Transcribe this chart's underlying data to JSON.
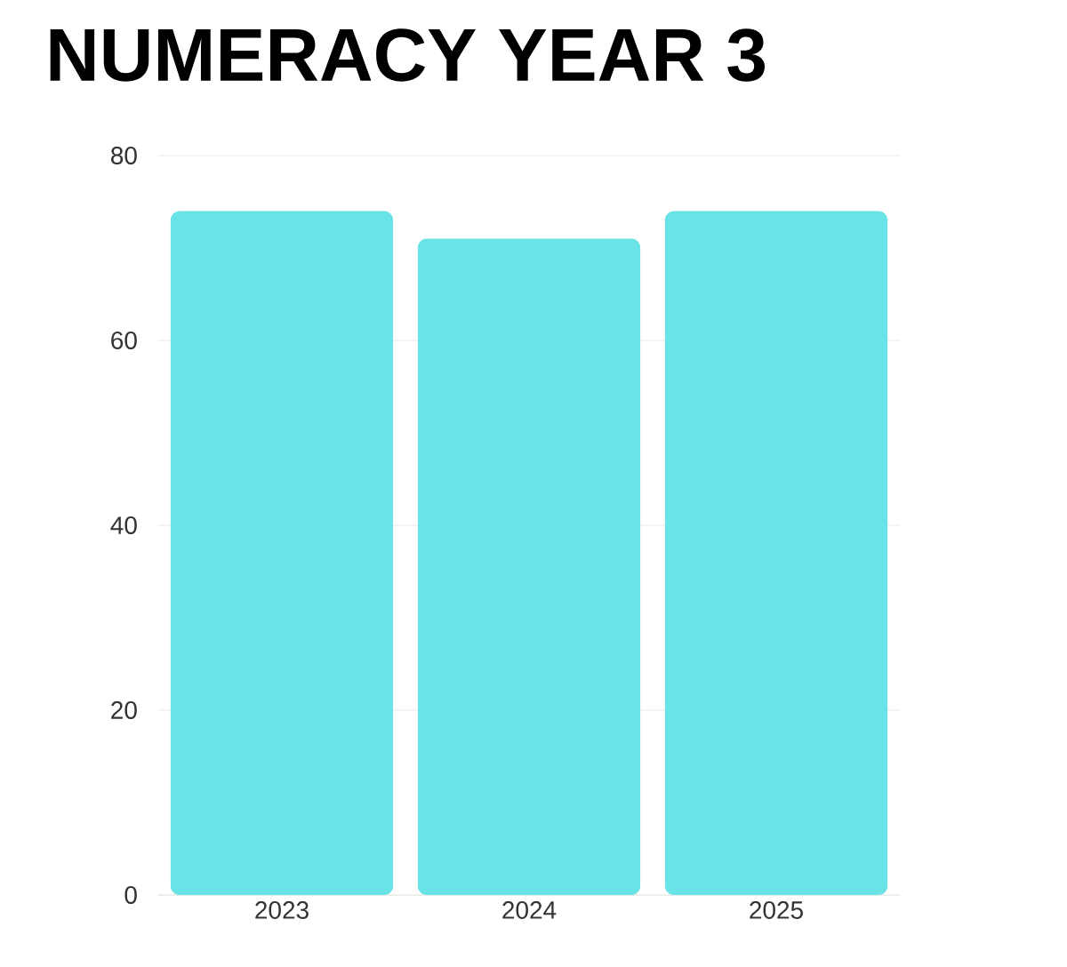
{
  "chart_data": {
    "type": "bar",
    "title": "NUMERACY YEAR 3",
    "categories": [
      "2023",
      "2024",
      "2025"
    ],
    "values": [
      74,
      71,
      74
    ],
    "color": "#6ae3e6",
    "ylim": [
      0,
      80
    ],
    "yticks": [
      0,
      20,
      40,
      60,
      80
    ],
    "grid": "y"
  }
}
